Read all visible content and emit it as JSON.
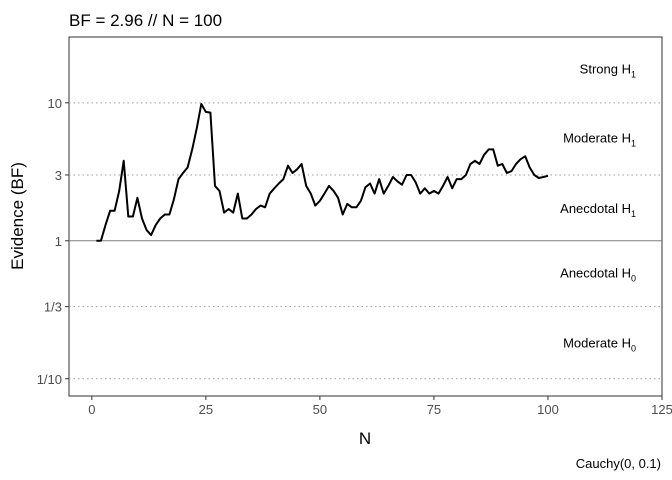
{
  "chart_data": {
    "type": "line",
    "title": "BF = 2.96 // N = 100",
    "xlabel": "N",
    "ylabel": "Evidence (BF)",
    "caption": "Cauchy(0, 0.1)",
    "y_scale": "log",
    "xlim": [
      -5,
      125
    ],
    "ylim": [
      0.075,
      30
    ],
    "x_ticks": [
      0,
      25,
      50,
      75,
      100,
      125
    ],
    "x_tick_labels": [
      "0",
      "25",
      "50",
      "75",
      "100",
      "125"
    ],
    "y_ticks": [
      0.1,
      0.3333,
      1,
      3,
      10
    ],
    "y_tick_labels": [
      "1/10",
      "1/3",
      "1",
      "3",
      "10"
    ],
    "reference_lines": [
      {
        "y": 1,
        "style": "solid"
      },
      {
        "y": 0.1,
        "style": "dotted"
      },
      {
        "y": 0.3333,
        "style": "dotted"
      },
      {
        "y": 3,
        "style": "dotted"
      },
      {
        "y": 10,
        "style": "dotted"
      }
    ],
    "region_labels": [
      {
        "text": "Strong H",
        "sub": "1",
        "y": 17.5
      },
      {
        "text": "Moderate H",
        "sub": "1",
        "y": 5.5
      },
      {
        "text": "Anecdotal H",
        "sub": "1",
        "y": 1.7
      },
      {
        "text": "Anecdotal H",
        "sub": "0",
        "y": 0.58
      },
      {
        "text": "Moderate H",
        "sub": "0",
        "y": 0.18
      }
    ],
    "series": [
      {
        "x": [
          1,
          2,
          3,
          4,
          5,
          6,
          7,
          8,
          9,
          10,
          11,
          12,
          13,
          14,
          15,
          16,
          17,
          18,
          19,
          20,
          21,
          22,
          23,
          24,
          25,
          26,
          27,
          28,
          29,
          30,
          31,
          32,
          33,
          34,
          35,
          36,
          37,
          38,
          39,
          40,
          41,
          42,
          43,
          44,
          45,
          46,
          47,
          48,
          49,
          50,
          51,
          52,
          53,
          54,
          55,
          56,
          57,
          58,
          59,
          60,
          61,
          62,
          63,
          64,
          65,
          66,
          67,
          68,
          69,
          70,
          71,
          72,
          73,
          74,
          75,
          76,
          77,
          78,
          79,
          80,
          81,
          82,
          83,
          84,
          85,
          86,
          87,
          88,
          89,
          90,
          91,
          92,
          93,
          94,
          95,
          96,
          97,
          98,
          99,
          100
        ],
        "y": [
          1.0,
          1.0,
          1.3,
          1.65,
          1.65,
          2.3,
          3.8,
          1.5,
          1.5,
          2.05,
          1.45,
          1.2,
          1.1,
          1.3,
          1.45,
          1.55,
          1.55,
          2.0,
          2.8,
          3.1,
          3.4,
          4.6,
          6.5,
          9.8,
          8.6,
          8.5,
          2.5,
          2.3,
          1.6,
          1.7,
          1.6,
          2.2,
          1.45,
          1.45,
          1.55,
          1.7,
          1.8,
          1.75,
          2.2,
          2.4,
          2.6,
          2.8,
          3.5,
          3.1,
          3.3,
          3.6,
          2.5,
          2.2,
          1.8,
          1.95,
          2.2,
          2.5,
          2.3,
          2.05,
          1.55,
          1.85,
          1.75,
          1.75,
          1.95,
          2.45,
          2.6,
          2.2,
          2.8,
          2.2,
          2.5,
          2.9,
          2.7,
          2.55,
          3.0,
          3.0,
          2.65,
          2.2,
          2.4,
          2.2,
          2.3,
          2.2,
          2.5,
          2.9,
          2.4,
          2.8,
          2.8,
          3.0,
          3.6,
          3.8,
          3.6,
          4.2,
          4.6,
          4.6,
          3.5,
          3.6,
          3.1,
          3.2,
          3.6,
          3.9,
          4.1,
          3.4,
          3.0,
          2.85,
          2.9,
          2.96
        ]
      }
    ],
    "grid": false,
    "legend": "none",
    "colors": {
      "line": "#000000",
      "panel_border": "#333333",
      "dotted": "#9e9e9e",
      "axis_text": "#4d4d4d"
    }
  }
}
